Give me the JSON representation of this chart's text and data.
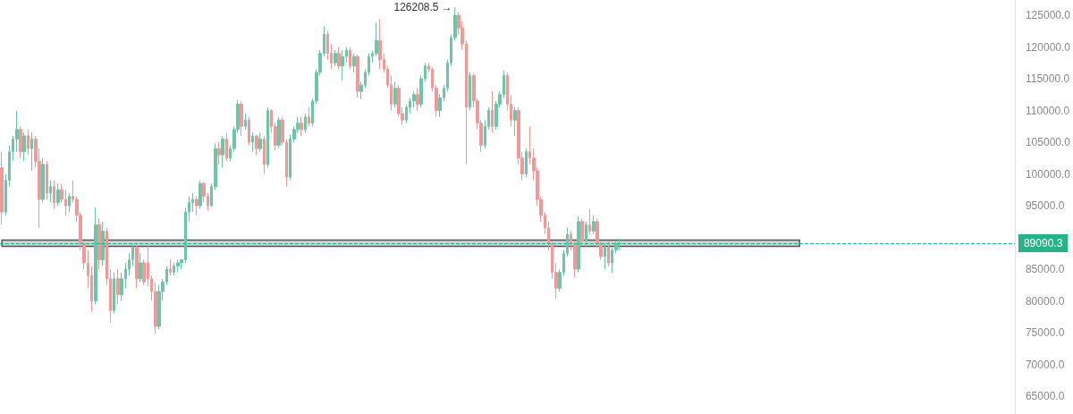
{
  "chart_data": {
    "type": "candlestick",
    "categories": [
      null,
      null,
      null,
      null,
      null,
      null,
      null,
      null,
      null,
      null,
      null,
      null,
      null,
      null,
      null,
      null,
      null,
      null,
      null,
      null,
      null,
      null,
      null,
      null,
      null,
      null,
      null,
      null,
      null,
      null,
      null,
      null,
      null,
      null,
      null,
      null,
      null,
      null,
      null,
      null,
      null,
      null,
      null,
      null,
      null,
      null,
      null,
      null,
      null,
      null,
      null,
      null,
      null,
      null,
      null,
      null,
      null,
      null,
      null,
      null,
      null,
      null,
      null,
      null,
      null,
      null,
      null,
      null,
      null,
      null,
      null,
      null,
      null,
      null,
      null,
      null,
      null,
      null,
      null,
      null,
      null,
      null,
      null,
      null,
      null,
      null,
      null,
      null,
      null,
      null,
      null,
      null,
      null,
      null,
      null,
      null,
      null,
      null,
      null,
      null,
      null,
      null,
      null,
      null,
      null,
      null,
      null,
      null,
      null,
      null,
      null,
      null,
      null,
      null,
      null,
      null,
      null,
      null,
      null,
      null,
      null,
      null,
      null,
      null,
      null,
      null,
      null,
      null,
      null,
      null,
      null,
      null,
      null,
      null,
      null,
      null,
      null,
      null,
      null,
      null,
      null,
      null,
      null,
      null,
      null,
      null,
      null,
      null,
      null,
      null,
      null,
      null,
      null,
      null,
      null,
      null,
      null,
      null,
      null,
      null,
      null,
      null,
      null,
      null,
      null,
      null,
      null,
      null,
      null,
      null,
      null,
      null,
      null,
      null,
      null,
      null,
      null,
      null,
      null,
      null,
      null,
      null,
      null,
      null,
      null,
      null,
      null,
      null,
      null,
      null,
      null,
      null,
      null,
      null,
      null,
      null,
      null,
      null,
      null,
      null,
      null,
      null,
      null,
      null,
      null,
      null,
      null,
      null,
      null,
      null,
      null,
      null,
      null,
      null,
      null,
      null,
      null,
      null,
      null,
      null,
      null,
      null,
      null,
      null,
      null,
      null,
      null,
      null,
      null,
      null,
      null,
      null,
      null,
      null,
      null,
      null,
      null,
      null,
      null,
      null,
      null,
      null,
      null,
      null,
      null,
      null,
      null,
      null,
      null,
      null,
      null,
      null,
      null,
      null,
      null,
      null,
      null,
      null,
      null,
      null,
      null,
      null,
      null,
      null,
      null,
      null,
      null,
      null,
      null,
      null,
      null
    ],
    "ohlc": [
      [
        101000,
        103500,
        92000,
        94000
      ],
      [
        94000,
        100000,
        93500,
        99000
      ],
      [
        99000,
        104500,
        98000,
        103500
      ],
      [
        103500,
        106000,
        102000,
        105500
      ],
      [
        105500,
        110000,
        103500,
        107000
      ],
      [
        107000,
        107500,
        102500,
        103500
      ],
      [
        103500,
        106500,
        102000,
        106000
      ],
      [
        106000,
        107000,
        103000,
        104000
      ],
      [
        104000,
        106500,
        100500,
        105500
      ],
      [
        105500,
        106000,
        101000,
        102000
      ],
      [
        102000,
        104000,
        91500,
        96000
      ],
      [
        96000,
        102500,
        95500,
        101500
      ],
      [
        101500,
        102000,
        96000,
        97000
      ],
      [
        97000,
        99000,
        95500,
        98000
      ],
      [
        98000,
        99000,
        94500,
        95500
      ],
      [
        95500,
        98500,
        95000,
        97500
      ],
      [
        97500,
        98500,
        95500,
        96000
      ],
      [
        96000,
        97500,
        93500,
        95000
      ],
      [
        95000,
        97000,
        94000,
        96500
      ],
      [
        96500,
        99000,
        95500,
        96000
      ],
      [
        96000,
        96500,
        92500,
        93500
      ],
      [
        93500,
        94000,
        88000,
        89000
      ],
      [
        89000,
        89500,
        85000,
        86000
      ],
      [
        86000,
        88000,
        82000,
        84000
      ],
      [
        84000,
        85500,
        78300,
        80000
      ],
      [
        80000,
        94700,
        79500,
        92000
      ],
      [
        92000,
        93000,
        85000,
        86500
      ],
      [
        86500,
        92500,
        85500,
        91000
      ],
      [
        91000,
        91500,
        82500,
        83500
      ],
      [
        83500,
        85000,
        76600,
        78500
      ],
      [
        78500,
        84500,
        78000,
        83500
      ],
      [
        83500,
        85000,
        79500,
        81000
      ],
      [
        81000,
        84500,
        80000,
        83500
      ],
      [
        83500,
        86000,
        82000,
        85000
      ],
      [
        85000,
        87500,
        84000,
        86500
      ],
      [
        86500,
        89000,
        85500,
        88500
      ],
      [
        88500,
        89000,
        82000,
        83500
      ],
      [
        83500,
        87500,
        83000,
        86000
      ],
      [
        86000,
        86500,
        82500,
        83000
      ],
      [
        86000,
        88800,
        82300,
        83500
      ],
      [
        83500,
        84000,
        80000,
        81500
      ],
      [
        81500,
        83000,
        74800,
        76000
      ],
      [
        76000,
        82500,
        75500,
        81500
      ],
      [
        81500,
        83500,
        80000,
        83000
      ],
      [
        83000,
        85500,
        82500,
        85000
      ],
      [
        85000,
        86500,
        84000,
        84500
      ],
      [
        84500,
        86000,
        84000,
        85500
      ],
      [
        85500,
        86500,
        84500,
        86000
      ],
      [
        86000,
        86500,
        85000,
        86500
      ],
      [
        86500,
        94700,
        86000,
        94000
      ],
      [
        94000,
        96500,
        92500,
        95500
      ],
      [
        95500,
        97000,
        94000,
        96000
      ],
      [
        96000,
        96500,
        93500,
        95000
      ],
      [
        95000,
        99000,
        94500,
        98500
      ],
      [
        98500,
        98800,
        95500,
        96500
      ],
      [
        96500,
        97000,
        94200,
        95000
      ],
      [
        95000,
        98500,
        94800,
        98000
      ],
      [
        98000,
        104800,
        97500,
        104000
      ],
      [
        104000,
        105000,
        101500,
        103000
      ],
      [
        103000,
        106000,
        101000,
        105500
      ],
      [
        105500,
        106500,
        102000,
        102500
      ],
      [
        102500,
        104500,
        102000,
        104000
      ],
      [
        104000,
        107500,
        103500,
        107000
      ],
      [
        107000,
        111700,
        106500,
        111000
      ],
      [
        111000,
        111500,
        106000,
        107500
      ],
      [
        107500,
        109500,
        107000,
        108500
      ],
      [
        108500,
        109000,
        104500,
        105000
      ],
      [
        105000,
        106500,
        103500,
        106000
      ],
      [
        106000,
        106200,
        103000,
        104000
      ],
      [
        104000,
        106500,
        103500,
        105500
      ],
      [
        105500,
        106000,
        100000,
        101500
      ],
      [
        101500,
        110500,
        101000,
        110000
      ],
      [
        110000,
        110200,
        106500,
        107500
      ],
      [
        107500,
        108000,
        103700,
        104500
      ],
      [
        104500,
        109000,
        104000,
        108500
      ],
      [
        108500,
        109000,
        104500,
        105000
      ],
      [
        105000,
        105500,
        98000,
        99500
      ],
      [
        99500,
        106200,
        99000,
        105500
      ],
      [
        105500,
        107500,
        105000,
        107000
      ],
      [
        107000,
        109000,
        106500,
        108000
      ],
      [
        108000,
        109000,
        106000,
        107000
      ],
      [
        107000,
        109500,
        106500,
        109000
      ],
      [
        109000,
        110500,
        107500,
        108000
      ],
      [
        108000,
        111900,
        107500,
        111500
      ],
      [
        111500,
        116500,
        111000,
        116000
      ],
      [
        116000,
        119500,
        115500,
        119000
      ],
      [
        119000,
        123300,
        118500,
        122000
      ],
      [
        122000,
        122500,
        118000,
        119000
      ],
      [
        119000,
        120500,
        116500,
        117500
      ],
      [
        117500,
        119500,
        117000,
        119000
      ],
      [
        119000,
        120000,
        116500,
        117000
      ],
      [
        117000,
        119500,
        114700,
        118500
      ],
      [
        118500,
        120000,
        117500,
        119500
      ],
      [
        119500,
        120000,
        116500,
        117000
      ],
      [
        117000,
        119000,
        116000,
        118500
      ],
      [
        118500,
        118800,
        112000,
        113000
      ],
      [
        113000,
        114500,
        111800,
        114000
      ],
      [
        114000,
        116500,
        113500,
        116000
      ],
      [
        116000,
        119000,
        115500,
        118500
      ],
      [
        118500,
        119500,
        117500,
        119000
      ],
      [
        119000,
        123800,
        118500,
        121000
      ],
      [
        121000,
        124400,
        116500,
        118000
      ],
      [
        118000,
        119000,
        116000,
        116500
      ],
      [
        116500,
        117000,
        113500,
        114000
      ],
      [
        114000,
        115500,
        110000,
        111000
      ],
      [
        111000,
        114500,
        110500,
        113500
      ],
      [
        113500,
        114000,
        109000,
        109500
      ],
      [
        109500,
        110500,
        107700,
        108500
      ],
      [
        108500,
        111000,
        108000,
        110500
      ],
      [
        110500,
        112000,
        109500,
        111500
      ],
      [
        111500,
        113000,
        110500,
        112500
      ],
      [
        112500,
        113500,
        110000,
        111000
      ],
      [
        111000,
        115500,
        110500,
        115000
      ],
      [
        115000,
        117500,
        114500,
        117000
      ],
      [
        117000,
        117500,
        116000,
        116500
      ],
      [
        116500,
        116800,
        113000,
        113500
      ],
      [
        113500,
        114000,
        109000,
        110000
      ],
      [
        110000,
        112500,
        109000,
        112000
      ],
      [
        112000,
        114000,
        111500,
        113500
      ],
      [
        113500,
        118000,
        113000,
        117500
      ],
      [
        117500,
        122000,
        117000,
        121500
      ],
      [
        121500,
        126208.5,
        121000,
        125000
      ],
      [
        125000,
        125500,
        122000,
        123000
      ],
      [
        123000,
        124000,
        119500,
        120500
      ],
      [
        120500,
        121000,
        101500,
        110500
      ],
      [
        110500,
        116000,
        110000,
        115500
      ],
      [
        115500,
        115800,
        110500,
        111500
      ],
      [
        111500,
        112000,
        107000,
        108000
      ],
      [
        108000,
        108500,
        103500,
        104500
      ],
      [
        104500,
        108500,
        104000,
        107500
      ],
      [
        107500,
        110500,
        107000,
        110000
      ],
      [
        110000,
        113000,
        106500,
        107500
      ],
      [
        107500,
        111500,
        107000,
        111000
      ],
      [
        111000,
        113000,
        110500,
        112500
      ],
      [
        112500,
        116300,
        112000,
        115500
      ],
      [
        115500,
        116000,
        110000,
        111000
      ],
      [
        111000,
        112500,
        107500,
        108500
      ],
      [
        108500,
        110500,
        106000,
        110000
      ],
      [
        110000,
        110500,
        101500,
        102500
      ],
      [
        102500,
        103500,
        99000,
        100000
      ],
      [
        100000,
        104000,
        99500,
        103500
      ],
      [
        103500,
        107500,
        101500,
        102500
      ],
      [
        102500,
        104000,
        99000,
        100500
      ],
      [
        100500,
        101000,
        95000,
        96000
      ],
      [
        96000,
        96500,
        92500,
        93500
      ],
      [
        93500,
        94000,
        90500,
        91500
      ],
      [
        91500,
        92500,
        88000,
        89000
      ],
      [
        89000,
        89500,
        83500,
        84500
      ],
      [
        84500,
        86000,
        80400,
        82000
      ],
      [
        82000,
        85000,
        81500,
        84500
      ],
      [
        84500,
        88000,
        84000,
        87500
      ],
      [
        87500,
        91500,
        87000,
        90500
      ],
      [
        90500,
        91000,
        88000,
        89000
      ],
      [
        89000,
        89500,
        83700,
        85000
      ],
      [
        85000,
        93300,
        84500,
        92500
      ],
      [
        92500,
        93000,
        89000,
        89500
      ],
      [
        89500,
        92500,
        88500,
        92000
      ],
      [
        92000,
        94500,
        90500,
        91000
      ],
      [
        91000,
        93500,
        90500,
        92500
      ],
      [
        92500,
        93000,
        88500,
        89000
      ],
      [
        89000,
        89500,
        86500,
        87000
      ],
      [
        87000,
        89000,
        85000,
        88500
      ],
      [
        88500,
        89500,
        85500,
        86000
      ],
      [
        86000,
        88500,
        84400,
        88000
      ],
      [
        88000,
        89500,
        87500,
        89000
      ],
      [
        89000,
        89800,
        88000,
        89090.3
      ],
      null,
      null,
      null,
      null,
      null,
      null,
      null,
      null,
      null,
      null,
      null,
      null,
      null,
      null,
      null,
      null,
      null,
      null,
      null,
      null,
      null,
      null,
      null,
      null,
      null,
      null,
      null,
      null,
      null,
      null,
      null,
      null,
      null,
      null,
      null,
      null,
      null,
      null,
      null,
      null,
      null,
      null,
      null,
      null,
      null,
      null,
      null,
      null,
      null,
      null,
      null,
      null,
      null,
      null,
      null,
      null,
      null,
      null,
      null,
      null,
      null,
      null,
      null,
      null,
      null,
      null,
      null,
      null,
      null,
      null,
      null,
      null,
      null,
      null,
      null,
      null,
      null,
      null,
      null,
      null,
      null,
      null,
      null,
      null,
      null,
      null,
      null,
      null,
      null,
      null,
      null,
      null,
      null,
      null,
      null,
      null,
      null,
      null,
      null,
      null,
      null,
      null,
      null,
      null,
      null
    ],
    "colors": [
      "#ef9a9a",
      "#6cc7a9",
      "#6cc7a9",
      "#6cc7a9",
      "#6cc7a9",
      "#ef9a9a",
      "#6cc7a9",
      "#ef9a9a",
      "#6cc7a9",
      "#ef9a9a",
      "#ef9a9a",
      "#6cc7a9",
      "#ef9a9a",
      "#6cc7a9",
      "#ef9a9a",
      "#6cc7a9",
      "#ef9a9a",
      "#ef9a9a",
      "#6cc7a9",
      "#ef9a9a",
      "#ef9a9a",
      "#ef9a9a",
      "#ef9a9a",
      "#ef9a9a",
      "#ef9a9a",
      "#6cc7a9",
      "#ef9a9a",
      "#6cc7a9",
      "#ef9a9a",
      "#ef9a9a",
      "#6cc7a9",
      "#ef9a9a",
      "#6cc7a9",
      "#6cc7a9",
      "#6cc7a9",
      "#6cc7a9",
      "#ef9a9a",
      "#6cc7a9",
      "#ef9a9a",
      "#ef9a9a",
      "#ef9a9a",
      "#ef9a9a",
      "#6cc7a9",
      "#6cc7a9",
      "#6cc7a9",
      "#ef9a9a",
      "#6cc7a9",
      "#6cc7a9",
      "#6cc7a9",
      "#6cc7a9",
      "#6cc7a9",
      "#6cc7a9",
      "#ef9a9a",
      "#6cc7a9",
      "#ef9a9a",
      "#ef9a9a",
      "#6cc7a9",
      "#6cc7a9",
      "#ef9a9a",
      "#6cc7a9",
      "#ef9a9a",
      "#6cc7a9",
      "#6cc7a9",
      "#6cc7a9",
      "#ef9a9a",
      "#6cc7a9",
      "#ef9a9a",
      "#6cc7a9",
      "#ef9a9a",
      "#6cc7a9",
      "#ef9a9a",
      "#6cc7a9",
      "#ef9a9a",
      "#ef9a9a",
      "#6cc7a9",
      "#ef9a9a",
      "#ef9a9a",
      "#6cc7a9",
      "#6cc7a9",
      "#6cc7a9",
      "#ef9a9a",
      "#6cc7a9",
      "#ef9a9a",
      "#6cc7a9",
      "#6cc7a9",
      "#6cc7a9",
      "#6cc7a9",
      "#ef9a9a",
      "#ef9a9a",
      "#6cc7a9",
      "#ef9a9a",
      "#6cc7a9",
      "#6cc7a9",
      "#ef9a9a",
      "#6cc7a9",
      "#ef9a9a",
      "#6cc7a9",
      "#6cc7a9",
      "#6cc7a9",
      "#6cc7a9",
      "#6cc7a9",
      "#ef9a9a",
      "#ef9a9a",
      "#ef9a9a",
      "#ef9a9a",
      "#6cc7a9",
      "#ef9a9a",
      "#ef9a9a",
      "#6cc7a9",
      "#6cc7a9",
      "#6cc7a9",
      "#ef9a9a",
      "#6cc7a9",
      "#6cc7a9",
      "#ef9a9a",
      "#ef9a9a",
      "#ef9a9a",
      "#6cc7a9",
      "#6cc7a9",
      "#6cc7a9",
      "#6cc7a9",
      "#6cc7a9",
      "#ef9a9a",
      "#ef9a9a",
      "#ef9a9a",
      "#6cc7a9",
      "#ef9a9a",
      "#ef9a9a",
      "#ef9a9a",
      "#6cc7a9",
      "#6cc7a9",
      "#ef9a9a",
      "#6cc7a9",
      "#6cc7a9",
      "#6cc7a9",
      "#ef9a9a",
      "#ef9a9a",
      "#6cc7a9",
      "#ef9a9a",
      "#ef9a9a",
      "#6cc7a9",
      "#ef9a9a",
      "#ef9a9a",
      "#ef9a9a",
      "#ef9a9a",
      "#ef9a9a",
      "#ef9a9a",
      "#ef9a9a",
      "#ef9a9a",
      "#6cc7a9",
      "#6cc7a9",
      "#6cc7a9",
      "#ef9a9a",
      "#ef9a9a",
      "#6cc7a9",
      "#ef9a9a",
      "#6cc7a9",
      "#ef9a9a",
      "#6cc7a9",
      "#ef9a9a",
      "#ef9a9a",
      "#6cc7a9",
      "#ef9a9a",
      "#6cc7a9",
      "#6cc7a9",
      "#6cc7a9",
      null,
      null,
      null,
      null,
      null,
      null,
      null,
      null,
      null,
      null,
      null,
      null,
      null,
      null,
      null,
      null,
      null,
      null,
      null,
      null,
      null,
      null,
      null,
      null,
      null,
      null,
      null,
      null,
      null,
      null,
      null,
      null,
      null,
      null,
      null,
      null,
      null,
      null,
      null,
      null,
      null,
      null,
      null,
      null,
      null,
      null,
      null,
      null,
      null,
      null,
      null,
      null,
      null,
      null,
      null,
      null,
      null,
      null,
      null,
      null,
      null,
      null,
      null,
      null,
      null,
      null,
      null,
      null,
      null,
      null,
      null,
      null,
      null,
      null,
      null,
      null,
      null,
      null,
      null,
      null,
      null,
      null,
      null,
      null,
      null,
      null,
      null,
      null,
      null,
      null,
      null,
      null,
      null,
      null,
      null,
      null,
      null,
      null,
      null,
      null,
      null,
      null,
      null,
      null,
      null
    ],
    "ylim": [
      62200,
      127400
    ],
    "yticks": [
      {
        "value": 65000,
        "label": "65000.0"
      },
      {
        "value": 70000,
        "label": "70000.0"
      },
      {
        "value": 75000,
        "label": "75000.0"
      },
      {
        "value": 80000,
        "label": "80000.0"
      },
      {
        "value": 85000,
        "label": "85000.0"
      },
      {
        "value": 95000,
        "label": "95000.0"
      },
      {
        "value": 100000,
        "label": "100000.0"
      },
      {
        "value": 105000,
        "label": "105000.0"
      },
      {
        "value": 110000,
        "label": "110000.0"
      },
      {
        "value": 115000,
        "label": "115000.0"
      },
      {
        "value": 120000,
        "label": "120000.0"
      },
      {
        "value": 125000,
        "label": "125000.0"
      }
    ],
    "tick_labels": "y",
    "ref_lines": [
      {
        "axis": "y",
        "value": 89090.3,
        "label": "89090.3",
        "color": "#26b38a",
        "line_style": "dashed"
      }
    ],
    "bands": [
      {
        "axis": "y",
        "from": 88600,
        "to": 89600,
        "color": "#cfd3d6"
      }
    ],
    "annotations": [
      "126208.5 →"
    ]
  }
}
